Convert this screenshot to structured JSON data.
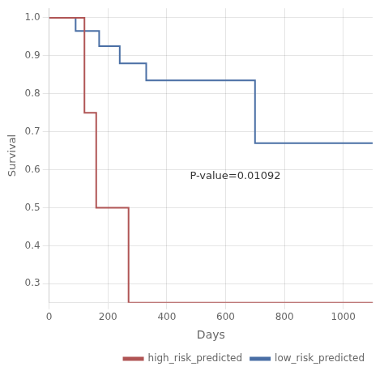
{
  "chart_data": {
    "type": "line",
    "xlabel": "Days",
    "ylabel": "Survival",
    "xlim": [
      0,
      1100
    ],
    "ylim": [
      0.25,
      1.025
    ],
    "xticks": [
      0,
      200,
      400,
      600,
      800,
      1000
    ],
    "yticks": [
      0.3,
      0.4,
      0.5,
      0.6,
      0.7,
      0.8,
      0.9,
      {
        "value": 1.0,
        "label": "1.0"
      }
    ],
    "grid": true,
    "legend": "lower right",
    "line_style": "steps",
    "annotations": [
      "P-value=0.01092"
    ],
    "series": [
      {
        "name": "high_risk_predicted",
        "color": "#b05555",
        "x": [
          0,
          120,
          160,
          210,
          270,
          280,
          1100
        ],
        "values": [
          1.0,
          0.75,
          0.5,
          0.5,
          0.25,
          0.25,
          0.25
        ]
      },
      {
        "name": "low_risk_predicted",
        "color": "#4a6fa5",
        "x": [
          0,
          90,
          170,
          240,
          330,
          580,
          700,
          760,
          1100
        ],
        "values": [
          1.0,
          0.965,
          0.925,
          0.88,
          0.835,
          0.835,
          0.67,
          0.67,
          0.67
        ]
      }
    ]
  }
}
